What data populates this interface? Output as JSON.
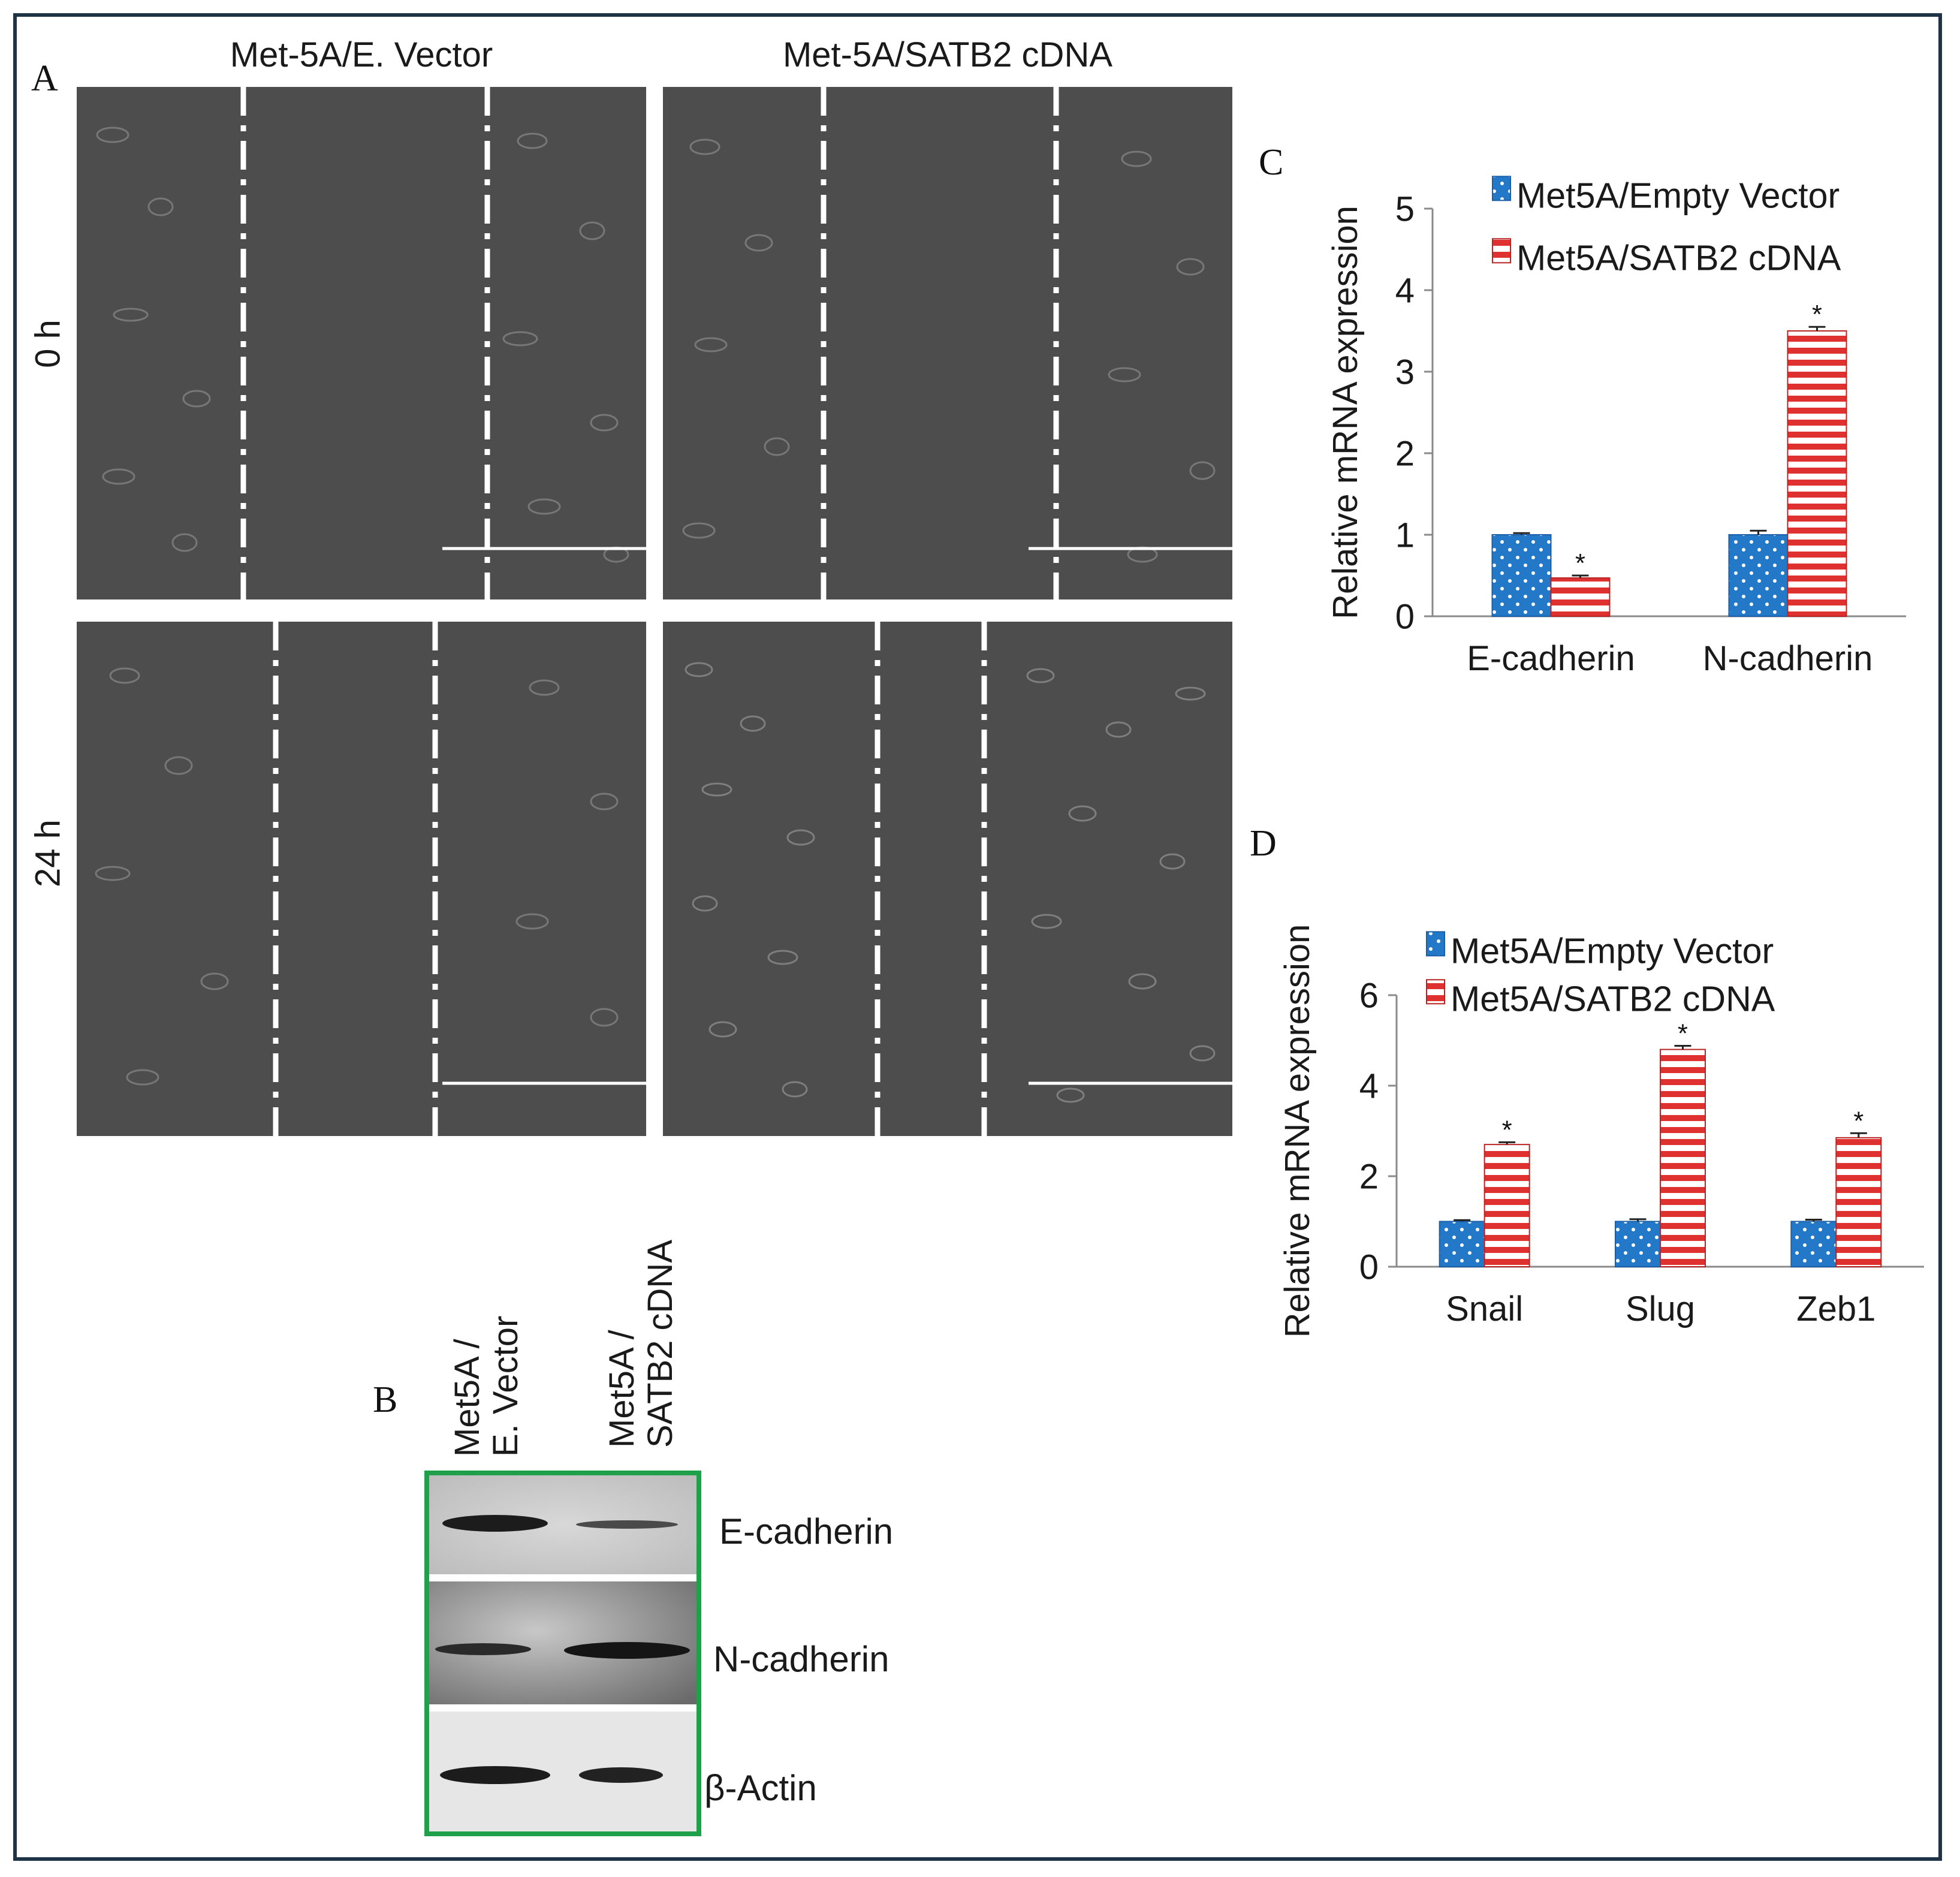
{
  "panels": {
    "a": {
      "letter": "A",
      "columns": [
        "Met-5A/E. Vector",
        "Met-5A/SATB2 cDNA"
      ],
      "rows": [
        "0 h",
        "24 h"
      ]
    },
    "b": {
      "letter": "B",
      "lane_labels": [
        {
          "line1": "Met5A /",
          "line2": "E. Vector"
        },
        {
          "line1": "Met5A /",
          "line2": "SATB2 cDNA"
        }
      ],
      "band_labels": [
        "E-cadherin",
        "N-cadherin",
        "β-Actin"
      ]
    },
    "c": {
      "letter": "C"
    },
    "d": {
      "letter": "D"
    }
  },
  "chart_data": [
    {
      "type": "bar",
      "panel": "C",
      "title": "",
      "ylabel": "Relative  mRNA  expression",
      "xlabel": "",
      "categories": [
        "E-cadherin",
        "N-cadherin"
      ],
      "ylim": [
        0,
        5
      ],
      "yticks": [
        0,
        1,
        2,
        3,
        4,
        5
      ],
      "legend_position": "top-right",
      "series": [
        {
          "name": "Met5A/Empty Vector",
          "values": [
            1.0,
            1.0
          ],
          "errors": [
            0.02,
            0.05
          ],
          "color": "#2478c8",
          "pattern": "dots"
        },
        {
          "name": "Met5A/SATB2 cDNA",
          "values": [
            0.47,
            3.5
          ],
          "errors": [
            0.03,
            0.05
          ],
          "color": "#e03131",
          "pattern": "stripes"
        }
      ],
      "annotations": [
        {
          "category": "E-cadherin",
          "series": "Met5A/SATB2 cDNA",
          "text": "*"
        },
        {
          "category": "N-cadherin",
          "series": "Met5A/SATB2 cDNA",
          "text": "*"
        }
      ]
    },
    {
      "type": "bar",
      "panel": "D",
      "title": "",
      "ylabel": "Relative  mRNA  expression",
      "xlabel": "",
      "categories": [
        "Snail",
        "Slug",
        "Zeb1"
      ],
      "ylim": [
        0,
        6
      ],
      "yticks": [
        0,
        2,
        4,
        6
      ],
      "legend_position": "top-right",
      "series": [
        {
          "name": "Met5A/Empty Vector",
          "values": [
            1.0,
            1.0,
            1.0
          ],
          "errors": [
            0.03,
            0.05,
            0.04
          ],
          "color": "#2478c8",
          "pattern": "dots"
        },
        {
          "name": "Met5A/SATB2 cDNA",
          "values": [
            2.7,
            4.8,
            2.85
          ],
          "errors": [
            0.05,
            0.08,
            0.1
          ],
          "color": "#e03131",
          "pattern": "stripes"
        }
      ],
      "annotations": [
        {
          "category": "Snail",
          "series": "Met5A/SATB2 cDNA",
          "text": "*"
        },
        {
          "category": "Slug",
          "series": "Met5A/SATB2 cDNA",
          "text": "*"
        },
        {
          "category": "Zeb1",
          "series": "Met5A/SATB2 cDNA",
          "text": "*"
        }
      ]
    }
  ]
}
